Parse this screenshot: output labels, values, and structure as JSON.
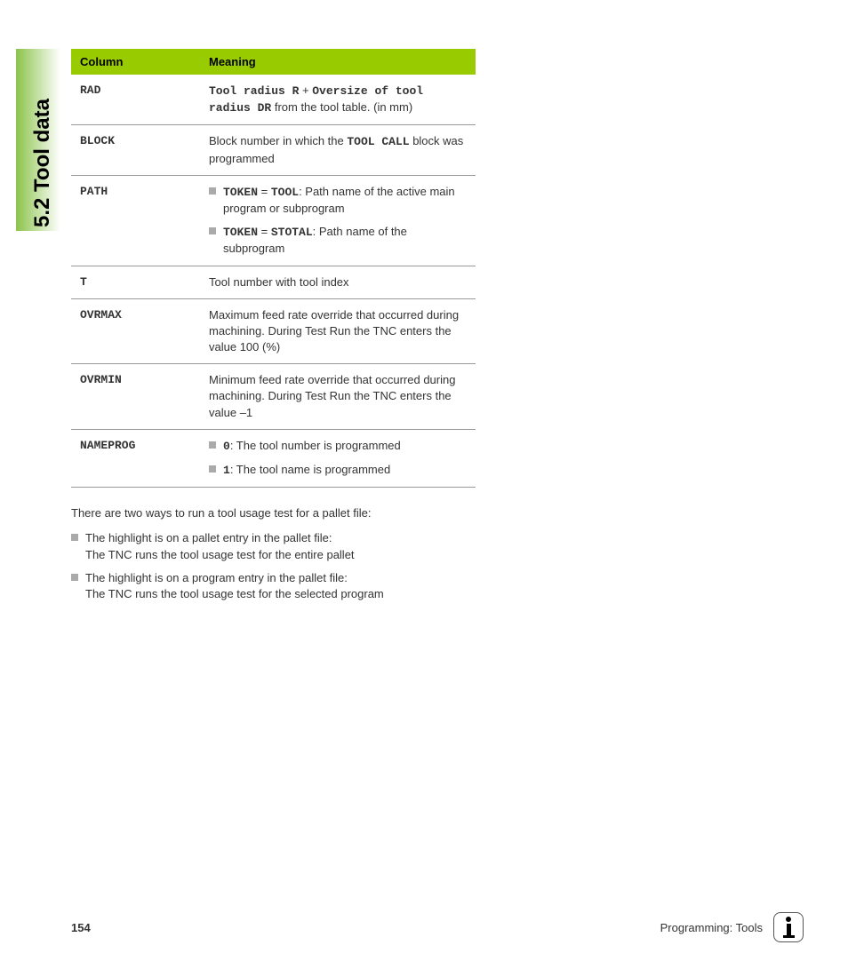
{
  "section": {
    "title": "5.2 Tool data"
  },
  "table": {
    "headers": {
      "column": "Column",
      "meaning": "Meaning"
    },
    "rows": {
      "rad": {
        "label": "RAD",
        "bold1": "Tool radius R",
        "mid": " + ",
        "bold2": "Oversize of tool radius DR",
        "rest": " from the tool table. (in mm)"
      },
      "block": {
        "label": "BLOCK",
        "pre": "Block number in which the ",
        "bold": "TOOL CALL",
        "post": " block was programmed"
      },
      "path": {
        "label": "PATH",
        "items": [
          {
            "bold1": "TOKEN",
            "eq": " = ",
            "bold2": "TOOL",
            "rest": ": Path name of the active main program or subprogram"
          },
          {
            "bold1": "TOKEN",
            "eq": " = ",
            "bold2": "STOTAL",
            "rest": ": Path name of the subprogram"
          }
        ]
      },
      "t": {
        "label": "T",
        "text": "Tool number with tool index"
      },
      "ovrmax": {
        "label": "OVRMAX",
        "text": "Maximum feed rate override that occurred during machining. During Test Run the TNC enters the value 100 (%)"
      },
      "ovrmin": {
        "label": "OVRMIN",
        "text": "Minimum feed rate override that occurred during machining. During Test Run the TNC enters the value –1"
      },
      "nameprog": {
        "label": "NAMEPROG",
        "items": [
          {
            "bold": "0",
            "rest": ": The tool number is programmed"
          },
          {
            "bold": "1",
            "rest": ": The tool name is programmed"
          }
        ]
      }
    }
  },
  "paragraph": "There are two ways to run a tool usage test for a pallet file:",
  "bullets": [
    {
      "line1": "The highlight is on a pallet entry in the pallet file:",
      "line2": "The TNC runs the tool usage test for the entire pallet"
    },
    {
      "line1": "The highlight is on a program entry in the pallet file:",
      "line2": "The TNC runs the tool usage test for the selected program"
    }
  ],
  "footer": {
    "page": "154",
    "section": "Programming: Tools"
  },
  "colors": {
    "header_bg": "#99cc00",
    "sidebar_gradient_start": "#8bc34a",
    "bullet_square": "#aaaaaa",
    "border": "#999999"
  }
}
